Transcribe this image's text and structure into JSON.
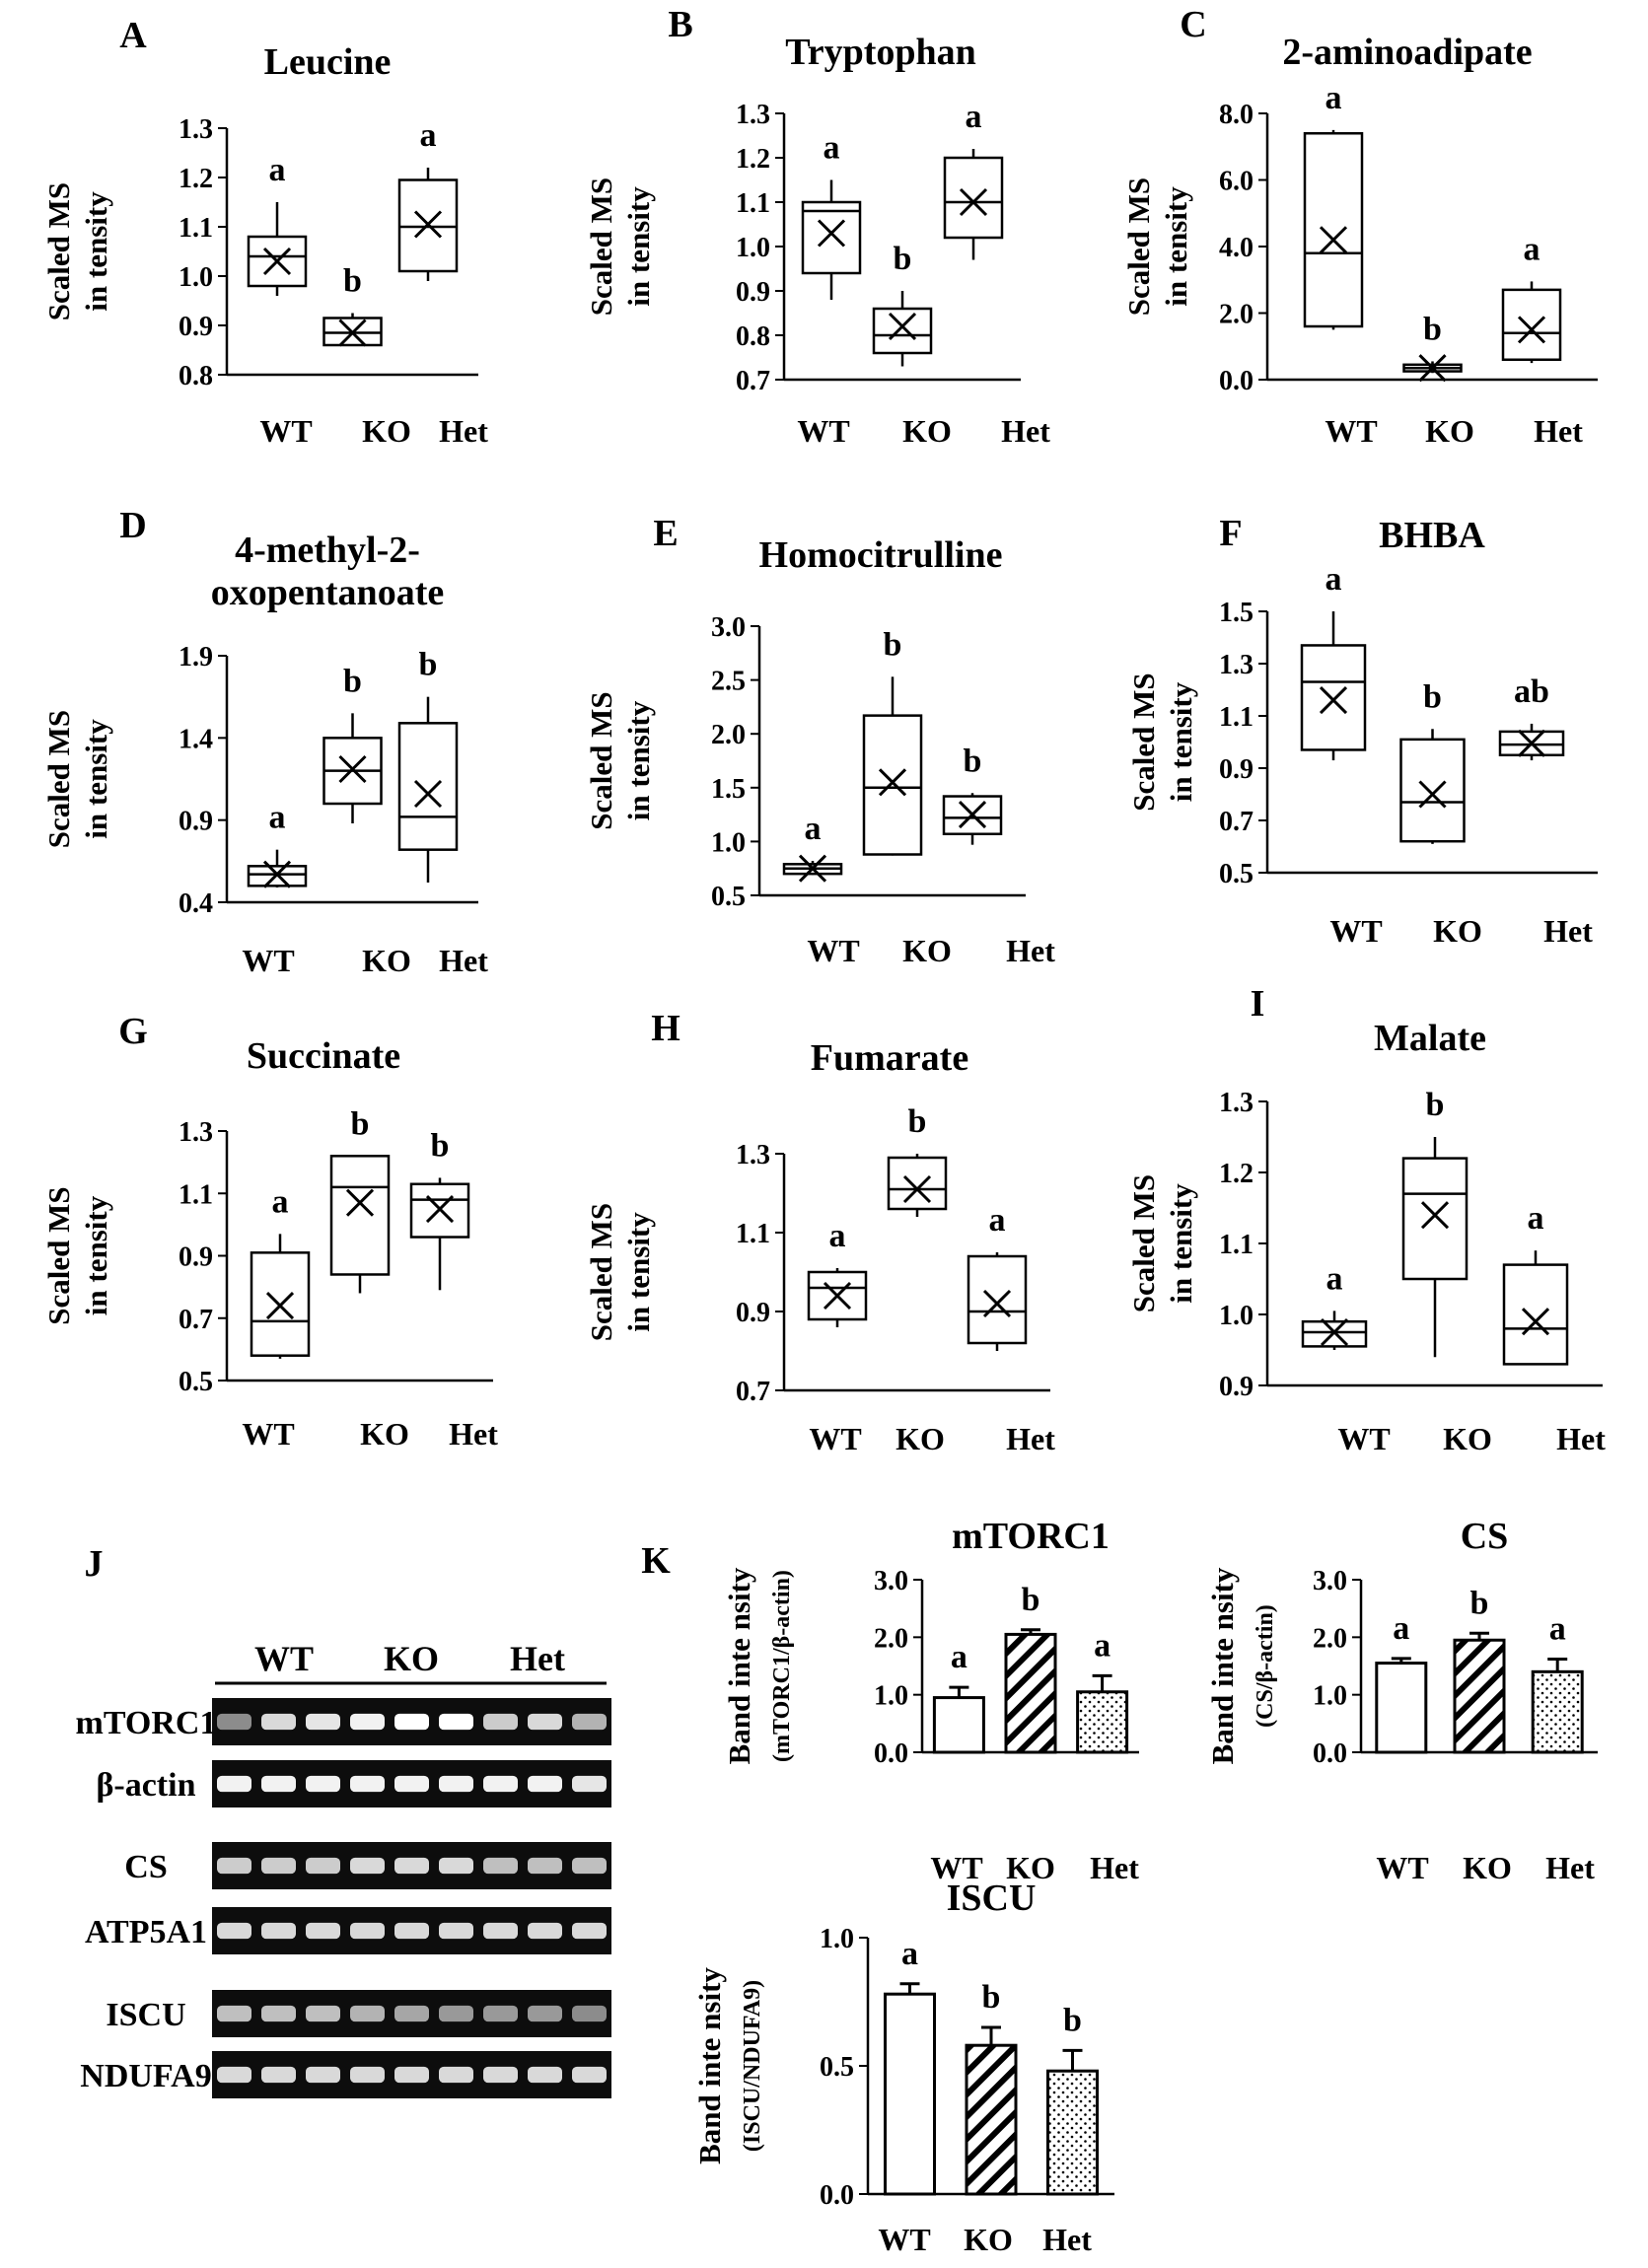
{
  "chart_data": [
    {
      "id": "A",
      "letter": "A",
      "type": "box",
      "title": "Leucine",
      "ylabel": "Scaled MS in tensity",
      "ylim": [
        0.8,
        1.3
      ],
      "yticks": [
        "0.8",
        "0.9",
        "1.0",
        "1.1",
        "1.2",
        "1.3"
      ],
      "categories": [
        "WT",
        "KO",
        "Het"
      ],
      "boxes": [
        {
          "min": 0.96,
          "q1": 0.98,
          "median": 1.04,
          "q3": 1.08,
          "max": 1.15,
          "mean": 1.03,
          "sig": "a"
        },
        {
          "min": 0.86,
          "q1": 0.86,
          "median": 0.885,
          "q3": 0.915,
          "max": 0.925,
          "mean": 0.885,
          "sig": "b"
        },
        {
          "min": 0.99,
          "q1": 1.01,
          "median": 1.1,
          "q3": 1.195,
          "max": 1.22,
          "mean": 1.105,
          "sig": "a"
        }
      ]
    },
    {
      "id": "B",
      "letter": "B",
      "type": "box",
      "title": "Tryptophan",
      "ylabel": "Scaled MS in tensity",
      "ylim": [
        0.7,
        1.3
      ],
      "yticks": [
        "0.7",
        "0.8",
        "0.9",
        "1.0",
        "1.1",
        "1.2",
        "1.3"
      ],
      "categories": [
        "WT",
        "KO",
        "Het"
      ],
      "boxes": [
        {
          "min": 0.88,
          "q1": 0.94,
          "median": 1.08,
          "q3": 1.1,
          "max": 1.15,
          "mean": 1.03,
          "sig": "a"
        },
        {
          "min": 0.73,
          "q1": 0.76,
          "median": 0.8,
          "q3": 0.86,
          "max": 0.9,
          "mean": 0.82,
          "sig": "b"
        },
        {
          "min": 0.97,
          "q1": 1.02,
          "median": 1.1,
          "q3": 1.2,
          "max": 1.22,
          "mean": 1.1,
          "sig": "a"
        }
      ]
    },
    {
      "id": "C",
      "letter": "C",
      "type": "box",
      "title": "2-aminoadipate",
      "ylabel": "Scaled MS in tensity",
      "ylim": [
        0.0,
        8.0
      ],
      "yticks": [
        "0.0",
        "2.0",
        "4.0",
        "6.0",
        "8.0"
      ],
      "categories": [
        "WT",
        "KO",
        "Het"
      ],
      "boxes": [
        {
          "min": 1.5,
          "q1": 1.6,
          "median": 3.8,
          "q3": 7.4,
          "max": 7.5,
          "mean": 4.2,
          "sig": "a"
        },
        {
          "min": 0.2,
          "q1": 0.25,
          "median": 0.35,
          "q3": 0.45,
          "max": 0.55,
          "mean": 0.35,
          "sig": "b"
        },
        {
          "min": 0.5,
          "q1": 0.6,
          "median": 1.4,
          "q3": 2.7,
          "max": 2.95,
          "mean": 1.5,
          "sig": "a"
        }
      ]
    },
    {
      "id": "D",
      "letter": "D",
      "type": "box",
      "title": "4-methyl-2-oxopentanoate",
      "title_lines": [
        "4-methyl-2-",
        "oxopentanoate"
      ],
      "ylabel": "Scaled MS in tensity",
      "ylim": [
        0.4,
        1.9
      ],
      "yticks": [
        "0.4",
        "0.9",
        "1.4",
        "1.9"
      ],
      "categories": [
        "WT",
        "KO",
        "Het"
      ],
      "boxes": [
        {
          "min": 0.49,
          "q1": 0.5,
          "median": 0.57,
          "q3": 0.62,
          "max": 0.72,
          "mean": 0.57,
          "sig": "a"
        },
        {
          "min": 0.88,
          "q1": 1.0,
          "median": 1.2,
          "q3": 1.4,
          "max": 1.55,
          "mean": 1.21,
          "sig": "b"
        },
        {
          "min": 0.52,
          "q1": 0.72,
          "median": 0.92,
          "q3": 1.49,
          "max": 1.65,
          "mean": 1.06,
          "sig": "b"
        }
      ]
    },
    {
      "id": "E",
      "letter": "E",
      "type": "box",
      "title": "Homocitrulline",
      "ylabel": "Scaled MS in tensity",
      "ylim": [
        0.5,
        3.0
      ],
      "yticks": [
        "0.5",
        "1.0",
        "1.5",
        "2.0",
        "2.5",
        "3.0"
      ],
      "categories": [
        "WT",
        "KO",
        "Het"
      ],
      "boxes": [
        {
          "min": 0.69,
          "q1": 0.7,
          "median": 0.75,
          "q3": 0.79,
          "max": 0.82,
          "mean": 0.75,
          "sig": "a"
        },
        {
          "min": 0.87,
          "q1": 0.88,
          "median": 1.5,
          "q3": 2.17,
          "max": 2.53,
          "mean": 1.55,
          "sig": "b"
        },
        {
          "min": 0.97,
          "q1": 1.07,
          "median": 1.22,
          "q3": 1.42,
          "max": 1.45,
          "mean": 1.25,
          "sig": "b"
        }
      ]
    },
    {
      "id": "F",
      "letter": "F",
      "type": "box",
      "title": "BHBA",
      "ylabel": "Scaled MS in tensity",
      "ylim": [
        0.5,
        1.5
      ],
      "yticks": [
        "0.5",
        "0.7",
        "0.9",
        "1.1",
        "1.3",
        "1.5"
      ],
      "categories": [
        "WT",
        "KO",
        "Het"
      ],
      "boxes": [
        {
          "min": 0.93,
          "q1": 0.97,
          "median": 1.23,
          "q3": 1.37,
          "max": 1.5,
          "mean": 1.16,
          "sig": "a"
        },
        {
          "min": 0.61,
          "q1": 0.62,
          "median": 0.77,
          "q3": 1.01,
          "max": 1.05,
          "mean": 0.8,
          "sig": "b"
        },
        {
          "min": 0.93,
          "q1": 0.95,
          "median": 0.99,
          "q3": 1.04,
          "max": 1.07,
          "mean": 0.995,
          "sig": "ab"
        }
      ]
    },
    {
      "id": "G",
      "letter": "G",
      "type": "box",
      "title": "Succinate",
      "ylabel": "Scaled MS in tensity",
      "ylim": [
        0.5,
        1.3
      ],
      "yticks": [
        "0.5",
        "0.7",
        "0.9",
        "1.1",
        "1.3"
      ],
      "categories": [
        "WT",
        "KO",
        "Het"
      ],
      "boxes": [
        {
          "min": 0.57,
          "q1": 0.58,
          "median": 0.69,
          "q3": 0.91,
          "max": 0.97,
          "mean": 0.74,
          "sig": "a"
        },
        {
          "min": 0.78,
          "q1": 0.84,
          "median": 1.12,
          "q3": 1.22,
          "max": 1.22,
          "mean": 1.07,
          "sig": "b"
        },
        {
          "min": 0.79,
          "q1": 0.96,
          "median": 1.08,
          "q3": 1.13,
          "max": 1.15,
          "mean": 1.05,
          "sig": "b"
        }
      ]
    },
    {
      "id": "H",
      "letter": "H",
      "type": "box",
      "title": "Fumarate",
      "ylabel": "Scaled MS in tensity",
      "ylim": [
        0.7,
        1.3
      ],
      "yticks": [
        "0.7",
        "0.9",
        "1.1",
        "1.3"
      ],
      "categories": [
        "WT",
        "KO",
        "Het"
      ],
      "boxes": [
        {
          "min": 0.86,
          "q1": 0.88,
          "median": 0.96,
          "q3": 1.0,
          "max": 1.01,
          "mean": 0.94,
          "sig": "a"
        },
        {
          "min": 1.14,
          "q1": 1.16,
          "median": 1.21,
          "q3": 1.29,
          "max": 1.3,
          "mean": 1.21,
          "sig": "b"
        },
        {
          "min": 0.8,
          "q1": 0.82,
          "median": 0.9,
          "q3": 1.04,
          "max": 1.05,
          "mean": 0.92,
          "sig": "a"
        }
      ]
    },
    {
      "id": "I",
      "letter": "I",
      "type": "box",
      "title": "Malate",
      "ylabel": "Scaled MS in tensity",
      "ylim": [
        0.9,
        1.3
      ],
      "yticks": [
        "0.9",
        "1.0",
        "1.1",
        "1.2",
        "1.3"
      ],
      "categories": [
        "WT",
        "KO",
        "Het"
      ],
      "boxes": [
        {
          "min": 0.95,
          "q1": 0.955,
          "median": 0.975,
          "q3": 0.99,
          "max": 1.005,
          "mean": 0.975,
          "sig": "a"
        },
        {
          "min": 0.94,
          "q1": 1.05,
          "median": 1.17,
          "q3": 1.22,
          "max": 1.25,
          "mean": 1.14,
          "sig": "b"
        },
        {
          "min": 0.93,
          "q1": 0.93,
          "median": 0.98,
          "q3": 1.07,
          "max": 1.09,
          "mean": 0.99,
          "sig": "a"
        }
      ]
    },
    {
      "id": "K1",
      "letter": "K",
      "type": "bar",
      "title": "mTORC1",
      "ylabel": "Band inte nsity",
      "ylabel2": "(mTORC1/β-actin)",
      "ylim": [
        0.0,
        3.0
      ],
      "yticks": [
        "0.0",
        "1.0",
        "2.0",
        "3.0"
      ],
      "categories": [
        "WT",
        "KO",
        "Het"
      ],
      "values": [
        0.95,
        2.05,
        1.05
      ],
      "errors": [
        0.18,
        0.08,
        0.28
      ],
      "sig": [
        "a",
        "b",
        "a"
      ],
      "fills": [
        "white",
        "hatch",
        "dots"
      ]
    },
    {
      "id": "K2",
      "letter": "",
      "type": "bar",
      "title": "CS",
      "ylabel": "Band inte nsity",
      "ylabel2": "(CS/β-actin)",
      "ylim": [
        0.0,
        3.0
      ],
      "yticks": [
        "0.0",
        "1.0",
        "2.0",
        "3.0"
      ],
      "categories": [
        "WT",
        "KO",
        "Het"
      ],
      "values": [
        1.55,
        1.95,
        1.4
      ],
      "errors": [
        0.08,
        0.12,
        0.22
      ],
      "sig": [
        "a",
        "b",
        "a"
      ],
      "fills": [
        "white",
        "hatch",
        "dots"
      ]
    },
    {
      "id": "K3",
      "letter": "",
      "type": "bar",
      "title": "ISCU",
      "ylabel": "Band inte nsity",
      "ylabel2": "(ISCU/NDUFA9)",
      "ylim": [
        0.0,
        1.0
      ],
      "yticks": [
        "0.0",
        "0.5",
        "1.0"
      ],
      "categories": [
        "WT",
        "KO",
        "Het"
      ],
      "values": [
        0.78,
        0.58,
        0.48
      ],
      "errors": [
        0.04,
        0.07,
        0.08
      ],
      "sig": [
        "a",
        "b",
        "b"
      ],
      "fills": [
        "white",
        "hatch",
        "dots"
      ]
    }
  ],
  "western_blot": {
    "letter": "J",
    "groups": [
      "WT",
      "KO",
      "Het"
    ],
    "rows": [
      {
        "label": "mTORC1",
        "intensity": [
          0.55,
          0.85,
          0.9,
          0.95,
          1.0,
          1.0,
          0.8,
          0.85,
          0.7
        ]
      },
      {
        "label": "β-actin",
        "intensity": [
          0.95,
          0.95,
          0.95,
          0.95,
          0.95,
          0.95,
          0.95,
          0.95,
          0.9
        ]
      },
      {
        "label": "CS",
        "intensity": [
          0.8,
          0.8,
          0.8,
          0.85,
          0.85,
          0.85,
          0.75,
          0.75,
          0.75
        ]
      },
      {
        "label": "ATP5A1",
        "intensity": [
          0.85,
          0.85,
          0.85,
          0.85,
          0.85,
          0.85,
          0.85,
          0.85,
          0.85
        ]
      },
      {
        "label": "ISCU",
        "intensity": [
          0.75,
          0.75,
          0.75,
          0.7,
          0.65,
          0.6,
          0.6,
          0.6,
          0.55
        ]
      },
      {
        "label": "NDUFA9",
        "intensity": [
          0.85,
          0.85,
          0.85,
          0.85,
          0.85,
          0.85,
          0.85,
          0.85,
          0.85
        ]
      }
    ]
  }
}
